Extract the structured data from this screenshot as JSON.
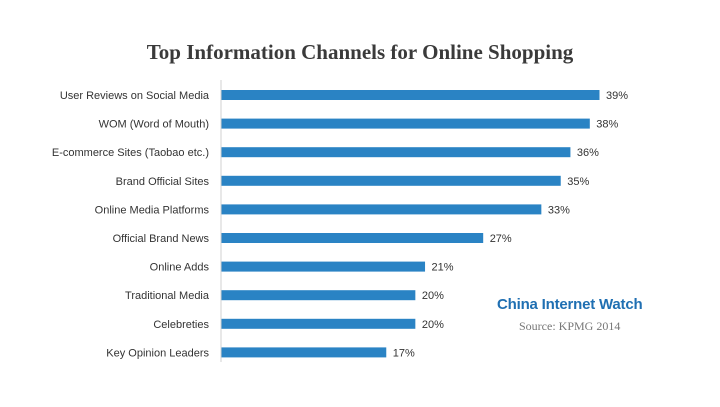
{
  "chart_data": {
    "type": "bar",
    "orientation": "horizontal",
    "title": "Top Information Channels for Online Shopping",
    "categories": [
      "User Reviews on Social Media",
      "WOM (Word of Mouth)",
      "E-commerce Sites (Taobao etc.)",
      "Brand Official Sites",
      "Online Media Platforms",
      "Official Brand News",
      "Online Adds",
      "Traditional Media",
      "Celebreties",
      "Key Opinion Leaders"
    ],
    "values": [
      39,
      38,
      36,
      35,
      33,
      27,
      21,
      20,
      20,
      17
    ],
    "value_labels": [
      "39%",
      "38%",
      "36%",
      "35%",
      "33%",
      "27%",
      "21%",
      "20%",
      "20%",
      "17%"
    ],
    "bar_color": "#2a83c4",
    "grid": false,
    "xlim": [
      0,
      39
    ]
  },
  "watermark": {
    "brand": "China Internet Watch",
    "source": "Source: KPMG 2014",
    "brand_color": "#1f6fb2"
  }
}
